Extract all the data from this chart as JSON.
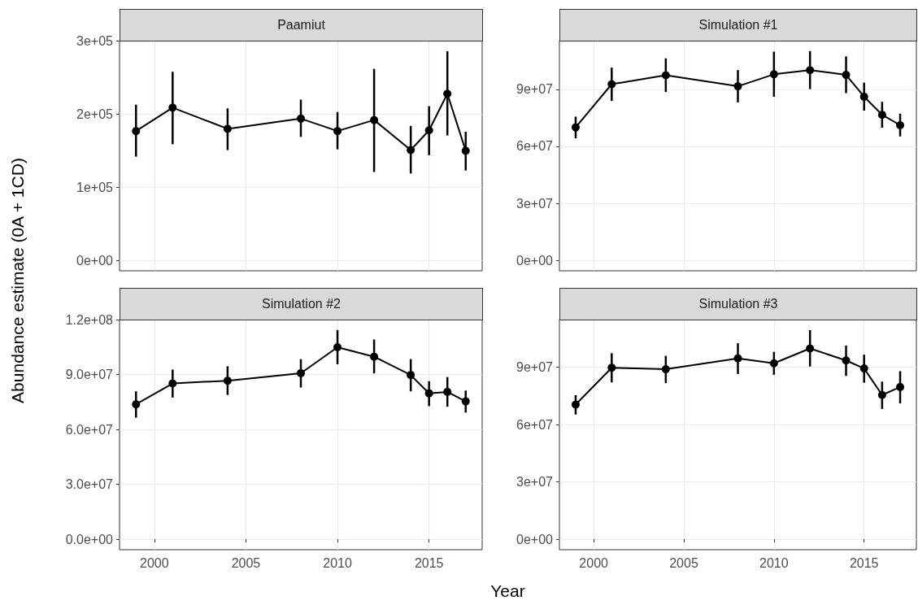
{
  "chart_data": [
    {
      "type": "line",
      "title": "Paamiut",
      "ylabel": "Abundance estimate (0A + 1CD)",
      "x": [
        1999,
        2001,
        2004,
        2008,
        2010,
        2012,
        2014,
        2015,
        2016,
        2017
      ],
      "xlim": [
        1998.1,
        2017.9
      ],
      "xticks": [
        2000,
        2005,
        2010,
        2015
      ],
      "ylim": [
        -14000.0,
        300500.0
      ],
      "yticks": [
        {
          "value": 0,
          "label": "0e+00"
        },
        {
          "value": 100000.0,
          "label": "1e+05"
        },
        {
          "value": 200000.0,
          "label": "2e+05"
        },
        {
          "value": 300000.0,
          "label": "3e+05"
        }
      ],
      "tick_labels": "y",
      "grid": true,
      "marker": "circle",
      "line_style": "solid",
      "series": [
        {
          "color": "#000000",
          "values": [
            177000.0,
            209000.0,
            180000.0,
            194000.0,
            177000.0,
            192000.0,
            151000.0,
            178000.0,
            228000.0,
            150000.0
          ],
          "errors": [
            [
              142000.0,
              213000.0
            ],
            [
              159000.0,
              258000.0
            ],
            [
              151000.0,
              208000.0
            ],
            [
              169000.0,
              220000.0
            ],
            [
              152000.0,
              203000.0
            ],
            [
              121000.0,
              262000.0
            ],
            [
              119000.0,
              184000.0
            ],
            [
              144000.0,
              211000.0
            ],
            [
              171000.0,
              286000.0
            ],
            [
              123000.0,
              176000.0
            ]
          ]
        }
      ]
    },
    {
      "type": "line",
      "title": "Simulation #1",
      "x": [
        1999,
        2001,
        2004,
        2008,
        2010,
        2012,
        2014,
        2015,
        2016,
        2017
      ],
      "xlim": [
        1998.1,
        2017.9
      ],
      "xticks": [
        2000,
        2005,
        2010,
        2015
      ],
      "ylim": [
        -5500000.0,
        115600000.0
      ],
      "yticks": [
        {
          "value": 0,
          "label": "0e+00"
        },
        {
          "value": 30000000.0,
          "label": "3e+07"
        },
        {
          "value": 60000000.0,
          "label": "6e+07"
        },
        {
          "value": 90000000.0,
          "label": "9e+07"
        }
      ],
      "tick_labels": "y",
      "grid": true,
      "marker": "circle",
      "line_style": "solid",
      "series": [
        {
          "color": "#000000",
          "values": [
            70000000.0,
            92700000.0,
            97400000.0,
            91600000.0,
            97900000.0,
            100100000.0,
            97600000.0,
            86100000.0,
            76600000.0,
            71100000.0
          ],
          "errors": [
            [
              64200000.0,
              75600000.0
            ],
            [
              83900000.0,
              101400000.0
            ],
            [
              88600000.0,
              106300000.0
            ],
            [
              83100000.0,
              100100000.0
            ],
            [
              86100000.0,
              109800000.0
            ],
            [
              90100000.0,
              110100000.0
            ],
            [
              88000000.0,
              107300000.0
            ],
            [
              78800000.0,
              93500000.0
            ],
            [
              69800000.0,
              83400000.0
            ],
            [
              65200000.0,
              77200000.0
            ]
          ]
        }
      ]
    },
    {
      "type": "line",
      "title": "Simulation #2",
      "xlabel": "Year",
      "x": [
        1999,
        2001,
        2004,
        2008,
        2010,
        2012,
        2014,
        2015,
        2016,
        2017
      ],
      "xlim": [
        1998.1,
        2017.9
      ],
      "xticks": [
        2000,
        2005,
        2010,
        2015
      ],
      "ylim": [
        -5700000.0,
        120120000.0
      ],
      "yticks": [
        {
          "value": 0,
          "label": "0.0e+00"
        },
        {
          "value": 30000000.0,
          "label": "3.0e+07"
        },
        {
          "value": 60000000.0,
          "label": "6.0e+07"
        },
        {
          "value": 90000000.0,
          "label": "9.0e+07"
        },
        {
          "value": 120000000.0,
          "label": "1.2e+08"
        }
      ],
      "grid": true,
      "marker": "circle",
      "line_style": "solid",
      "series": [
        {
          "color": "#000000",
          "values": [
            73800000.0,
            85200000.0,
            86700000.0,
            90800000.0,
            105000000.0,
            99800000.0,
            89800000.0,
            79800000.0,
            80600000.0,
            75400000.0
          ],
          "errors": [
            [
              66500000.0,
              80900000.0
            ],
            [
              77500000.0,
              92800000.0
            ],
            [
              78900000.0,
              94600000.0
            ],
            [
              83000000.0,
              98500000.0
            ],
            [
              95700000.0,
              114400000.0
            ],
            [
              90700000.0,
              109200000.0
            ],
            [
              80900000.0,
              98500000.0
            ],
            [
              72800000.0,
              86400000.0
            ],
            [
              72500000.0,
              88700000.0
            ],
            [
              69300000.0,
              81300000.0
            ]
          ]
        }
      ]
    },
    {
      "type": "line",
      "title": "Simulation #3",
      "x": [
        1999,
        2001,
        2004,
        2008,
        2010,
        2012,
        2014,
        2015,
        2016,
        2017
      ],
      "xlim": [
        1998.1,
        2017.9
      ],
      "xticks": [
        2000,
        2005,
        2010,
        2015
      ],
      "ylim": [
        -5500000.0,
        115000000.0
      ],
      "yticks": [
        {
          "value": 0,
          "label": "0e+00"
        },
        {
          "value": 30000000.0,
          "label": "3e+07"
        },
        {
          "value": 60000000.0,
          "label": "6e+07"
        },
        {
          "value": 90000000.0,
          "label": "9e+07"
        }
      ],
      "grid": true,
      "marker": "circle",
      "line_style": "solid",
      "series": [
        {
          "color": "#000000",
          "values": [
            70500000.0,
            89800000.0,
            89000000.0,
            94700000.0,
            92100000.0,
            99900000.0,
            93600000.0,
            89400000.0,
            75500000.0,
            79700000.0
          ],
          "errors": [
            [
              65300000.0,
              75400000.0
            ],
            [
              82100000.0,
              97400000.0
            ],
            [
              81700000.0,
              96000000.0
            ],
            [
              86500000.0,
              102600000.0
            ],
            [
              86100000.0,
              98100000.0
            ],
            [
              90400000.0,
              109500000.0
            ],
            [
              85500000.0,
              101400000.0
            ],
            [
              81900000.0,
              96600000.0
            ],
            [
              68200000.0,
              82500000.0
            ],
            [
              71100000.0,
              88000000.0
            ]
          ]
        }
      ]
    }
  ]
}
